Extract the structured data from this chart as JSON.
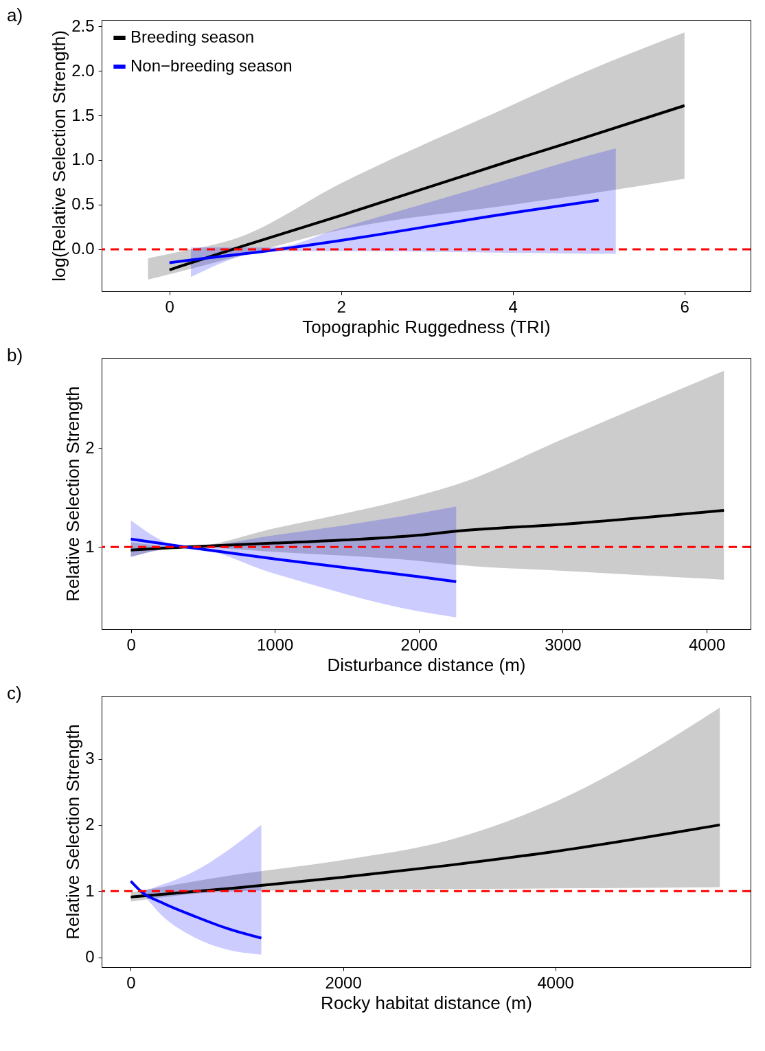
{
  "chart_data": [
    {
      "type": "line",
      "title": "a)",
      "xlabel": "Topographic Ruggedness (TRI)",
      "ylabel": "log(Relative Selection Strength)",
      "xlim": [
        -0.79,
        6.77
      ],
      "xticks": [
        0,
        2,
        4,
        6
      ],
      "ylim": [
        -0.47,
        2.57
      ],
      "yticks": [
        {
          "value": 0,
          "label": "0.0"
        },
        0.5,
        {
          "value": 1,
          "label": "1.0"
        },
        1.5,
        {
          "value": 2,
          "label": "2.0"
        },
        2.5
      ],
      "grid": false,
      "legend": "top left",
      "series": [
        {
          "name": "Breeding season",
          "color": "#000000",
          "x": [
            -0.25,
            0,
            0.8,
            2,
            4,
            4.8,
            6
          ],
          "values": [
            null,
            -0.23,
            0.02,
            0.38,
            1.0,
            1.24,
            1.61
          ],
          "lower": [
            -0.34,
            -0.28,
            -0.08,
            0.22,
            0.5,
            0.61,
            0.79
          ],
          "upper": [
            -0.1,
            -0.05,
            0.13,
            0.74,
            1.62,
            1.97,
            2.43
          ]
        },
        {
          "name": "Non−breeding season",
          "color": "#0000ff",
          "x": [
            0,
            0.25,
            1.2,
            2,
            4,
            5,
            5.2
          ],
          "values": [
            -0.15,
            -0.12,
            -0.01,
            0.1,
            0.41,
            0.55,
            null
          ],
          "lower": [
            null,
            -0.31,
            -0.02,
            -0.02,
            -0.04,
            -0.05,
            -0.05
          ],
          "upper": [
            null,
            0.02,
            0.02,
            0.24,
            0.8,
            1.08,
            1.13
          ]
        }
      ],
      "ref_lines": [
        {
          "axis": "y",
          "value": 0,
          "color": "#ff0000",
          "line_style": "dashed"
        }
      ]
    },
    {
      "type": "line",
      "title": "b)",
      "xlabel": "Disturbance distance (m)",
      "ylabel": "Relative Selection Strength",
      "xlim": [
        -203,
        4305
      ],
      "xticks": [
        0,
        1000,
        2000,
        3000,
        4000
      ],
      "ylim": [
        0.17,
        2.91
      ],
      "yticks": [
        1,
        2
      ],
      "grid": false,
      "series": [
        {
          "color": "#000000",
          "x": [
            0,
            380,
            1000,
            2000,
            2260,
            3000,
            4120
          ],
          "values": [
            0.97,
            1.0,
            1.04,
            1.12,
            1.16,
            1.23,
            1.37
          ],
          "lower": [
            0.9,
            1.0,
            0.95,
            0.86,
            0.82,
            0.76,
            0.67
          ],
          "upper": [
            1.05,
            1.0,
            1.19,
            1.52,
            1.63,
            2.09,
            2.78
          ]
        },
        {
          "color": "#0000ff",
          "x": [
            0,
            380,
            1000,
            2000,
            2260
          ],
          "values": [
            1.08,
            1.0,
            0.88,
            0.7,
            0.65
          ],
          "lower": [
            0.9,
            1.0,
            0.73,
            0.35,
            0.29
          ],
          "upper": [
            1.27,
            1.0,
            1.12,
            1.34,
            1.41
          ]
        }
      ],
      "ref_lines": [
        {
          "axis": "y",
          "value": 1,
          "color": "#ff0000",
          "line_style": "dashed"
        }
      ]
    },
    {
      "type": "line",
      "title": "c)",
      "xlabel": "Rocky habitat distance (m)",
      "ylabel": "Relative Selection Strength",
      "xlim": [
        -275,
        5840
      ],
      "xticks": [
        0,
        2000,
        4000
      ],
      "ylim": [
        -0.15,
        3.95
      ],
      "yticks": [
        0,
        1,
        2,
        3
      ],
      "grid": false,
      "series": [
        {
          "color": "#000000",
          "x": [
            0,
            1000,
            2000,
            3000,
            4000,
            5550
          ],
          "values": [
            0.91,
            1.05,
            1.21,
            1.39,
            1.6,
            2.0
          ],
          "lower": [
            0.84,
            1.0,
            1.02,
            1.03,
            1.04,
            1.06
          ],
          "upper": [
            0.98,
            1.25,
            1.47,
            1.77,
            2.35,
            3.77
          ]
        },
        {
          "color": "#0000ff",
          "x": [
            0,
            100,
            300,
            600,
            900,
            1230
          ],
          "values": [
            1.15,
            0.99,
            0.82,
            0.62,
            0.44,
            0.29
          ],
          "lower": [
            1.12,
            0.97,
            0.62,
            0.3,
            0.12,
            0.04
          ],
          "upper": [
            1.18,
            1.01,
            1.1,
            1.3,
            1.6,
            2.0
          ]
        }
      ],
      "ref_lines": [
        {
          "axis": "y",
          "value": 1,
          "color": "#ff0000",
          "line_style": "dashed"
        }
      ]
    }
  ]
}
